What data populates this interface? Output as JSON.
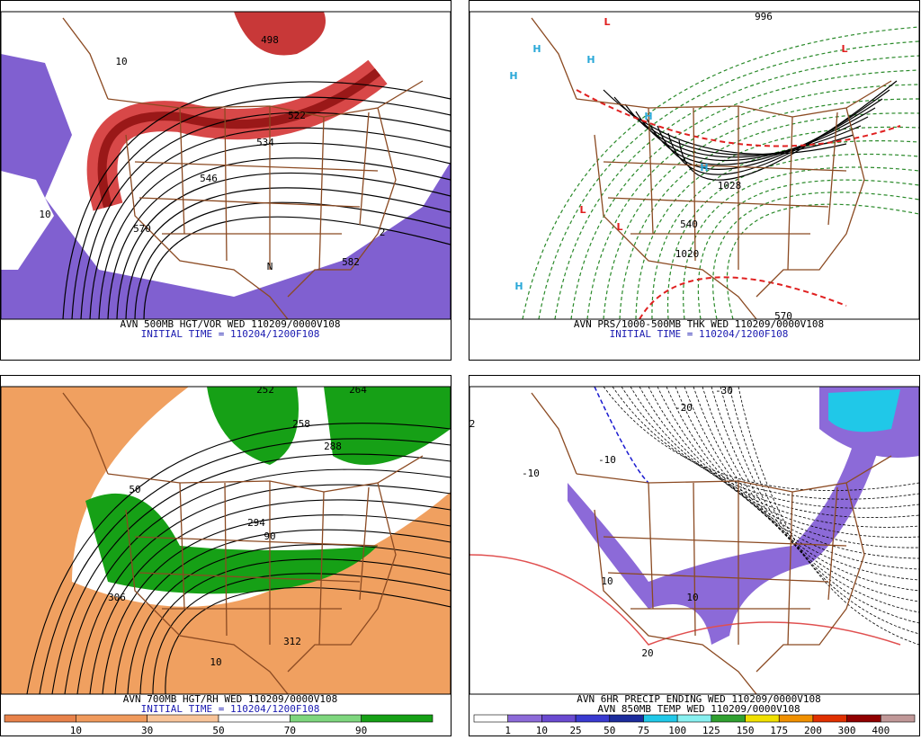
{
  "panels": [
    {
      "caption": "AVN 500MB HGT/VOR WED 110209/0000V108",
      "subcaption": "INITIAL TIME = 110204/1200F108",
      "labels": [
        "498",
        "522",
        "534",
        "546",
        "570",
        "10",
        "10",
        "N",
        "2",
        "582"
      ]
    },
    {
      "caption": "AVN PRS/1000-500MB THK WED 110209/0000V108",
      "subcaption": "INITIAL TIME = 110204/1200F108",
      "labels": [
        "H",
        "H",
        "H",
        "H",
        "H",
        "H",
        "L",
        "L",
        "L",
        "L",
        "996",
        "1028",
        "1020",
        "540",
        "570"
      ]
    },
    {
      "caption": "AVN 700MB HGT/RH WED 110209/0000V108",
      "subcaption": "INITIAL TIME = 110204/1200F108",
      "labels": [
        "252",
        "258",
        "264",
        "288",
        "294",
        "306",
        "312",
        "10",
        "50",
        "90"
      ]
    },
    {
      "caption": "AVN 6HR PRECIP ENDING WED 110209/0000V108",
      "subcaption": "AVN 850MB TEMP WED 110209/0000V108",
      "labels": [
        "-30",
        "-20",
        "-10",
        "10",
        "10",
        "20",
        "-10",
        "2"
      ]
    }
  ],
  "colorbars": [
    {
      "labels": [
        "10",
        "30",
        "50",
        "70",
        "90"
      ],
      "colors": [
        "#e8824a",
        "#f09a5c",
        "#f8c49a",
        "#ffffff",
        "#7ed67e",
        "#16a016"
      ]
    },
    {
      "labels": [
        "1",
        "10",
        "25",
        "50",
        "75",
        "100",
        "125",
        "150",
        "175",
        "200",
        "300",
        "400"
      ],
      "colors": [
        "#ffffff",
        "#8c6ad8",
        "#6a4ad0",
        "#3a3ad0",
        "#1c2c9c",
        "#20c8e8",
        "#88f0f0",
        "#30a030",
        "#f0e000",
        "#f09000",
        "#e03000",
        "#900000",
        "#c09898"
      ]
    }
  ]
}
